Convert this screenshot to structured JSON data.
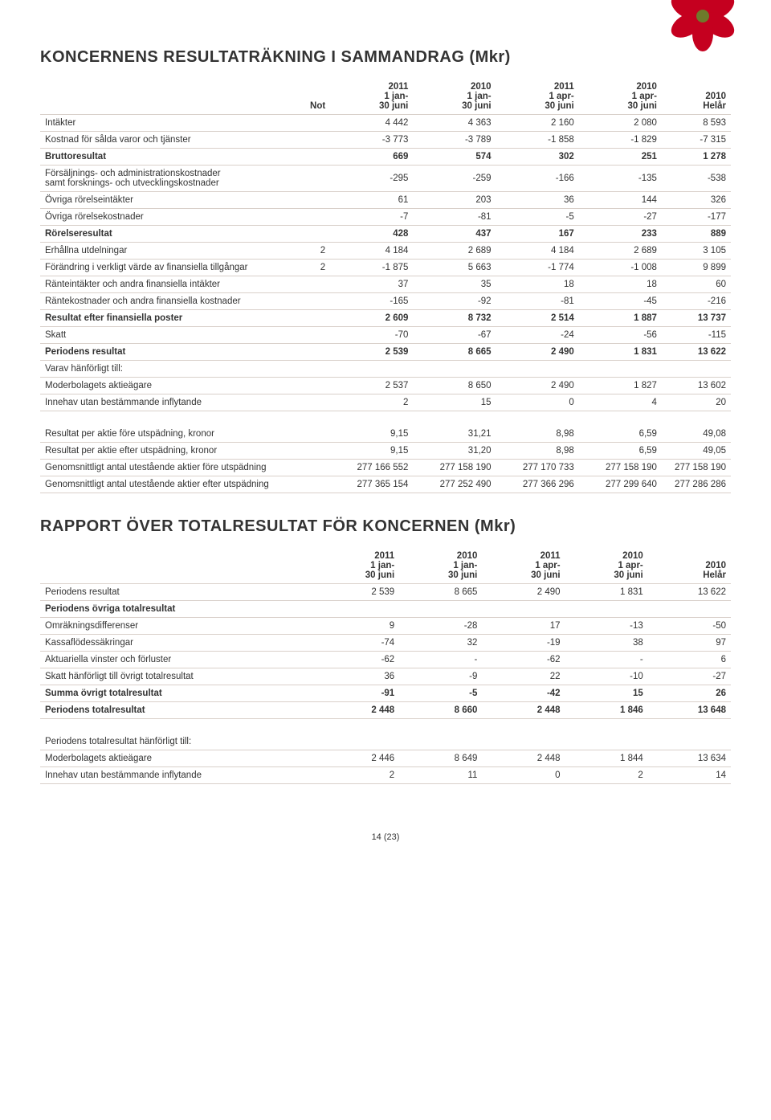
{
  "logo_colors": {
    "red": "#c5001f",
    "green": "#6e7a2b"
  },
  "table1": {
    "title": "KONCERNENS RESULTATRÄKNING I SAMMANDRAG (Mkr)",
    "columns": [
      "",
      "Not",
      "2011\n1 jan-\n30 juni",
      "2010\n1 jan-\n30 juni",
      "2011\n1 apr-\n30 juni",
      "2010\n1 apr-\n30 juni",
      "2010\nHelår"
    ],
    "rows": [
      {
        "label": "Intäkter",
        "vals": [
          "",
          "4 442",
          "4 363",
          "2 160",
          "2 080",
          "8 593"
        ]
      },
      {
        "label": "Kostnad för sålda varor och tjänster",
        "vals": [
          "",
          "-3 773",
          "-3 789",
          "-1 858",
          "-1 829",
          "-7 315"
        ]
      },
      {
        "label": "Bruttoresultat",
        "bold": true,
        "vals": [
          "",
          "669",
          "574",
          "302",
          "251",
          "1 278"
        ]
      },
      {
        "label": "Försäljnings- och administrationskostnader\nsamt forsknings- och utvecklingskostnader",
        "vals": [
          "",
          "-295",
          "-259",
          "-166",
          "-135",
          "-538"
        ]
      },
      {
        "label": "Övriga rörelseintäkter",
        "vals": [
          "",
          "61",
          "203",
          "36",
          "144",
          "326"
        ]
      },
      {
        "label": "Övriga rörelsekostnader",
        "vals": [
          "",
          "-7",
          "-81",
          "-5",
          "-27",
          "-177"
        ]
      },
      {
        "label": "Rörelseresultat",
        "bold": true,
        "vals": [
          "",
          "428",
          "437",
          "167",
          "233",
          "889"
        ]
      },
      {
        "label": "Erhållna utdelningar",
        "vals": [
          "2",
          "4 184",
          "2 689",
          "4 184",
          "2 689",
          "3 105"
        ]
      },
      {
        "label": "Förändring i verkligt värde av finansiella tillgångar",
        "vals": [
          "2",
          "-1 875",
          "5 663",
          "-1 774",
          "-1 008",
          "9 899"
        ]
      },
      {
        "label": "Ränteintäkter och andra finansiella intäkter",
        "vals": [
          "",
          "37",
          "35",
          "18",
          "18",
          "60"
        ]
      },
      {
        "label": "Räntekostnader och andra finansiella kostnader",
        "vals": [
          "",
          "-165",
          "-92",
          "-81",
          "-45",
          "-216"
        ]
      },
      {
        "label": "Resultat efter finansiella poster",
        "bold": true,
        "vals": [
          "",
          "2 609",
          "8 732",
          "2 514",
          "1 887",
          "13 737"
        ]
      },
      {
        "label": "Skatt",
        "vals": [
          "",
          "-70",
          "-67",
          "-24",
          "-56",
          "-115"
        ]
      },
      {
        "label": "Periodens resultat",
        "bold": true,
        "vals": [
          "",
          "2 539",
          "8 665",
          "2 490",
          "1 831",
          "13 622"
        ]
      },
      {
        "label": "Varav hänförligt till:",
        "vals": [
          "",
          "",
          "",
          "",
          "",
          ""
        ],
        "noborder": true
      },
      {
        "label": "Moderbolagets aktieägare",
        "vals": [
          "",
          "2 537",
          "8 650",
          "2 490",
          "1 827",
          "13 602"
        ]
      },
      {
        "label": "Innehav utan bestämmande inflytande",
        "vals": [
          "",
          "2",
          "15",
          "0",
          "4",
          "20"
        ]
      },
      {
        "spacer": true
      },
      {
        "label": "Resultat per aktie före utspädning, kronor",
        "vals": [
          "",
          "9,15",
          "31,21",
          "8,98",
          "6,59",
          "49,08"
        ]
      },
      {
        "label": "Resultat per aktie efter utspädning, kronor",
        "vals": [
          "",
          "9,15",
          "31,20",
          "8,98",
          "6,59",
          "49,05"
        ]
      },
      {
        "label": "Genomsnittligt antal utestående aktier före utspädning",
        "vals": [
          "",
          "277 166 552",
          "277 158 190",
          "277 170 733",
          "277 158 190",
          "277 158 190"
        ]
      },
      {
        "label": "Genomsnittligt antal utestående aktier efter utspädning",
        "vals": [
          "",
          "277 365 154",
          "277 252 490",
          "277 366 296",
          "277 299 640",
          "277 286 286"
        ]
      }
    ]
  },
  "table2": {
    "title": "RAPPORT ÖVER TOTALRESULTAT FÖR KONCERNEN (Mkr)",
    "columns": [
      "",
      "2011\n1 jan-\n30 juni",
      "2010\n1 jan-\n30 juni",
      "2011\n1 apr-\n30 juni",
      "2010\n1 apr-\n30 juni",
      "2010\nHelår"
    ],
    "rows": [
      {
        "label": "Periodens resultat",
        "vals": [
          "2 539",
          "8 665",
          "2 490",
          "1 831",
          "13 622"
        ]
      },
      {
        "label": "Periodens övriga totalresultat",
        "bold": true,
        "vals": [
          "",
          "",
          "",
          "",
          ""
        ],
        "noborder": true
      },
      {
        "label": "Omräkningsdifferenser",
        "vals": [
          "9",
          "-28",
          "17",
          "-13",
          "-50"
        ]
      },
      {
        "label": "Kassaflödessäkringar",
        "vals": [
          "-74",
          "32",
          "-19",
          "38",
          "97"
        ]
      },
      {
        "label": "Aktuariella vinster och förluster",
        "vals": [
          "-62",
          "-",
          "-62",
          "-",
          "6"
        ]
      },
      {
        "label": "Skatt hänförligt till övrigt totalresultat",
        "vals": [
          "36",
          "-9",
          "22",
          "-10",
          "-27"
        ]
      },
      {
        "label": "Summa övrigt totalresultat",
        "bold": true,
        "vals": [
          "-91",
          "-5",
          "-42",
          "15",
          "26"
        ]
      },
      {
        "label": "Periodens totalresultat",
        "bold": true,
        "vals": [
          "2 448",
          "8 660",
          "2 448",
          "1 846",
          "13 648"
        ]
      },
      {
        "spacer": true
      },
      {
        "label": "Periodens totalresultat hänförligt till:",
        "vals": [
          "",
          "",
          "",
          "",
          ""
        ],
        "noborder": true
      },
      {
        "label": "Moderbolagets aktieägare",
        "vals": [
          "2 446",
          "8 649",
          "2 448",
          "1 844",
          "13 634"
        ]
      },
      {
        "label": "Innehav utan bestämmande inflytande",
        "vals": [
          "2",
          "11",
          "0",
          "2",
          "14"
        ]
      }
    ]
  },
  "page_number": "14 (23)",
  "col_widths_t1": [
    "38%",
    "4%",
    "12%",
    "12%",
    "12%",
    "12%",
    "10%"
  ],
  "col_widths_t2": [
    "40%",
    "12%",
    "12%",
    "12%",
    "12%",
    "12%"
  ]
}
